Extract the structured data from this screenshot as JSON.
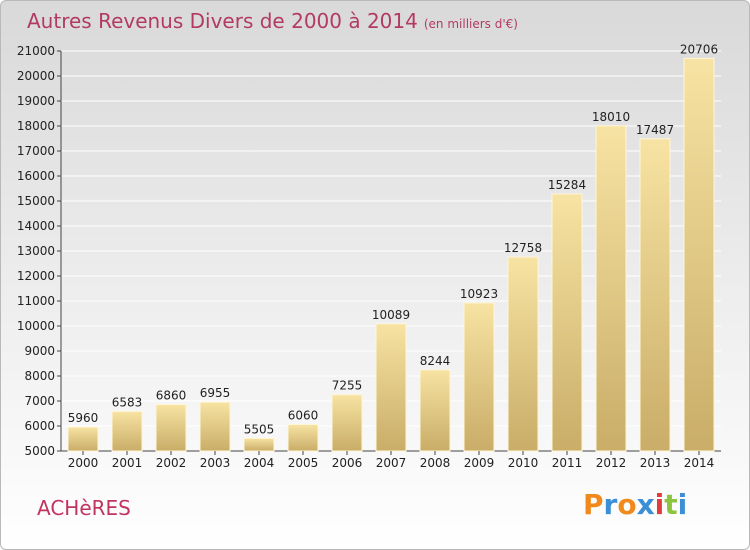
{
  "title": "Autres Revenus Divers de 2000 à 2014",
  "subtitle": "(en milliers d'€)",
  "place": "ACHèRES",
  "logo": {
    "letters": [
      "P",
      "r",
      "o",
      "x",
      "i",
      "t",
      "i"
    ],
    "colors": [
      "#f08a1c",
      "#3a8fd6",
      "#f08a1c",
      "#3a8fd6",
      "#e23b3b",
      "#8cc63f",
      "#3a8fd6"
    ]
  },
  "colors": {
    "bar_light": "#f7e3a3",
    "bar_dark": "#c9ad68",
    "title": "#b23a64",
    "grid": "#ffffff"
  },
  "chart_data": {
    "type": "bar",
    "categories": [
      "2000",
      "2001",
      "2002",
      "2003",
      "2004",
      "2005",
      "2006",
      "2007",
      "2008",
      "2009",
      "2010",
      "2011",
      "2012",
      "2013",
      "2014"
    ],
    "values": [
      5960,
      6583,
      6860,
      6955,
      5505,
      6060,
      7255,
      10089,
      8244,
      10923,
      12758,
      15284,
      18010,
      17487,
      20706
    ],
    "ylim": [
      5000,
      21000
    ],
    "yticks": [
      5000,
      6000,
      7000,
      8000,
      9000,
      10000,
      11000,
      12000,
      13000,
      14000,
      15000,
      16000,
      17000,
      18000,
      19000,
      20000,
      21000
    ],
    "grid": true
  }
}
